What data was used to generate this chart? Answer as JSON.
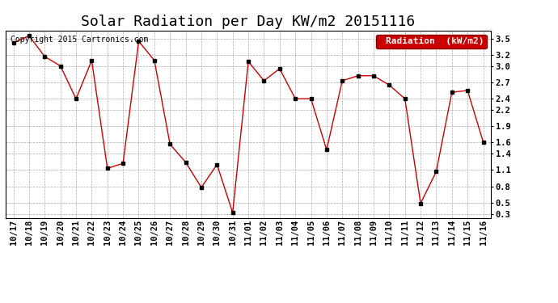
{
  "title": "Solar Radiation per Day KW/m2 20151116",
  "copyright_text": "Copyright 2015 Cartronics.com",
  "legend_label": "Radiation  (kW/m2)",
  "dates": [
    "10/17",
    "10/18",
    "10/19",
    "10/20",
    "10/21",
    "10/22",
    "10/23",
    "10/24",
    "10/25",
    "10/26",
    "10/27",
    "10/28",
    "10/29",
    "10/30",
    "10/31",
    "11/01",
    "11/02",
    "11/03",
    "11/04",
    "11/05",
    "11/06",
    "11/07",
    "11/08",
    "11/09",
    "11/10",
    "11/11",
    "11/12",
    "11/13",
    "11/14",
    "11/15",
    "11/16"
  ],
  "values": [
    3.42,
    3.55,
    3.17,
    3.0,
    2.4,
    3.1,
    1.13,
    1.22,
    3.45,
    3.1,
    1.57,
    1.24,
    0.78,
    1.2,
    0.32,
    3.08,
    2.73,
    2.95,
    2.4,
    2.4,
    1.47,
    2.73,
    2.82,
    2.82,
    2.65,
    2.4,
    0.49,
    1.07,
    2.52,
    2.55,
    1.61
  ],
  "yticks": [
    0.3,
    0.5,
    0.8,
    1.1,
    1.4,
    1.6,
    1.9,
    2.2,
    2.4,
    2.7,
    3.0,
    3.2,
    3.5
  ],
  "ylim": [
    0.22,
    3.65
  ],
  "line_color": "#cc0000",
  "marker_color": "#000000",
  "background_color": "#ffffff",
  "grid_color": "#aaaaaa",
  "legend_bg": "#cc0000",
  "legend_text_color": "#ffffff",
  "title_fontsize": 13,
  "tick_fontsize": 7.5,
  "copyright_fontsize": 7,
  "legend_fontsize": 8
}
